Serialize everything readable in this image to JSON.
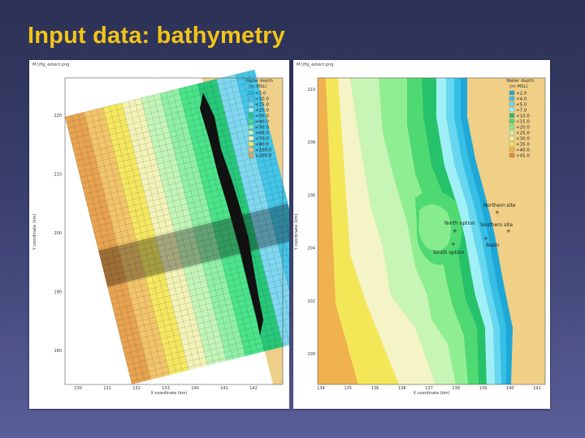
{
  "slide": {
    "title": "Input data: bathymetry"
  },
  "left_figure": {
    "file_label": "M:\\\\fig_extent.png",
    "legend": {
      "title_line1": "Water depth",
      "title_line2": "(m MSL)",
      "entries": [
        "<2.0",
        "<10.0",
        "<15.0",
        "<20.0",
        "<30.0",
        "<40.0",
        "<50.0",
        "<60.0",
        "<70.0",
        "<80.0",
        "<100.0",
        "<200.0"
      ],
      "colors": [
        "#1eb5e2",
        "#43c6e8",
        "#7fd8f0",
        "#b2ecf5",
        "#27c87a",
        "#4be48a",
        "#90f0a8",
        "#c4f5b8",
        "#f3f3b8",
        "#f5e860",
        "#f3c56a",
        "#e8a350"
      ]
    },
    "y_ticks": [
      "220",
      "210",
      "200",
      "190",
      "180"
    ],
    "x_ticks": [
      "130",
      "131",
      "132",
      "133",
      "140",
      "141",
      "142"
    ],
    "x_label": "X coordinate (km)",
    "y_label": "Y coordinate (km)"
  },
  "right_figure": {
    "file_label": "M:\\\\fig_extent.png",
    "legend": {
      "title_line1": "Water depth",
      "title_line2": "(m MSL)",
      "entries": [
        "<2.0",
        "<4.0",
        "<5.0",
        "<7.0",
        "<10.0",
        "<15.0",
        "<20.0",
        "<25.0",
        "<30.0",
        "<35.0",
        "<40.0",
        "<45.0"
      ],
      "colors": [
        "#1ea8d8",
        "#38c0e8",
        "#66d8f0",
        "#9ef0f6",
        "#22c26a",
        "#52da74",
        "#8aee90",
        "#c6f6b4",
        "#f4f2b0",
        "#f2e85a",
        "#f3b652",
        "#e58a3a"
      ]
    },
    "y_ticks": [
      "210",
      "208",
      "206",
      "204",
      "202",
      "200"
    ],
    "x_ticks": [
      "134",
      "135",
      "136",
      "136",
      "137",
      "138",
      "139",
      "140",
      "141"
    ],
    "x_label": "X coordinate (km)",
    "y_label": "Y coordinate (km)",
    "sites": {
      "northern_site": "Northern site",
      "north_option": "North option",
      "southern_site": "Southern site",
      "basin": "Basin",
      "south_option": "South option"
    }
  }
}
